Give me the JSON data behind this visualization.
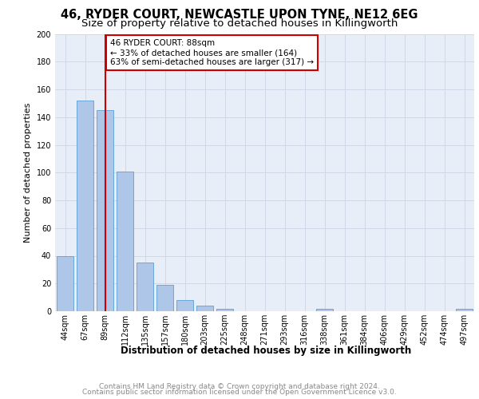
{
  "title1": "46, RYDER COURT, NEWCASTLE UPON TYNE, NE12 6EG",
  "title2": "Size of property relative to detached houses in Killingworth",
  "xlabel": "Distribution of detached houses by size in Killingworth",
  "ylabel": "Number of detached properties",
  "footer1": "Contains HM Land Registry data © Crown copyright and database right 2024.",
  "footer2": "Contains public sector information licensed under the Open Government Licence v3.0.",
  "bar_labels": [
    "44sqm",
    "67sqm",
    "89sqm",
    "112sqm",
    "135sqm",
    "157sqm",
    "180sqm",
    "203sqm",
    "225sqm",
    "248sqm",
    "271sqm",
    "293sqm",
    "316sqm",
    "338sqm",
    "361sqm",
    "384sqm",
    "406sqm",
    "429sqm",
    "452sqm",
    "474sqm",
    "497sqm"
  ],
  "bar_values": [
    40,
    152,
    145,
    101,
    35,
    19,
    8,
    4,
    2,
    0,
    0,
    0,
    0,
    2,
    0,
    0,
    0,
    0,
    0,
    0,
    2
  ],
  "bar_color": "#aec6e8",
  "bar_edgecolor": "#5a9fd4",
  "highlight_bar_index": 2,
  "property_line_color": "#cc0000",
  "annotation_text": "46 RYDER COURT: 88sqm\n← 33% of detached houses are smaller (164)\n63% of semi-detached houses are larger (317) →",
  "annotation_box_edgecolor": "#cc0000",
  "annotation_box_facecolor": "#ffffff",
  "ylim": [
    0,
    200
  ],
  "yticks": [
    0,
    20,
    40,
    60,
    80,
    100,
    120,
    140,
    160,
    180,
    200
  ],
  "grid_color": "#d0d8e8",
  "background_color": "#e8eef8",
  "title1_fontsize": 10.5,
  "title2_fontsize": 9.5,
  "xlabel_fontsize": 8.5,
  "ylabel_fontsize": 8,
  "tick_fontsize": 7,
  "footer_fontsize": 6.5,
  "annotation_fontsize": 7.5
}
